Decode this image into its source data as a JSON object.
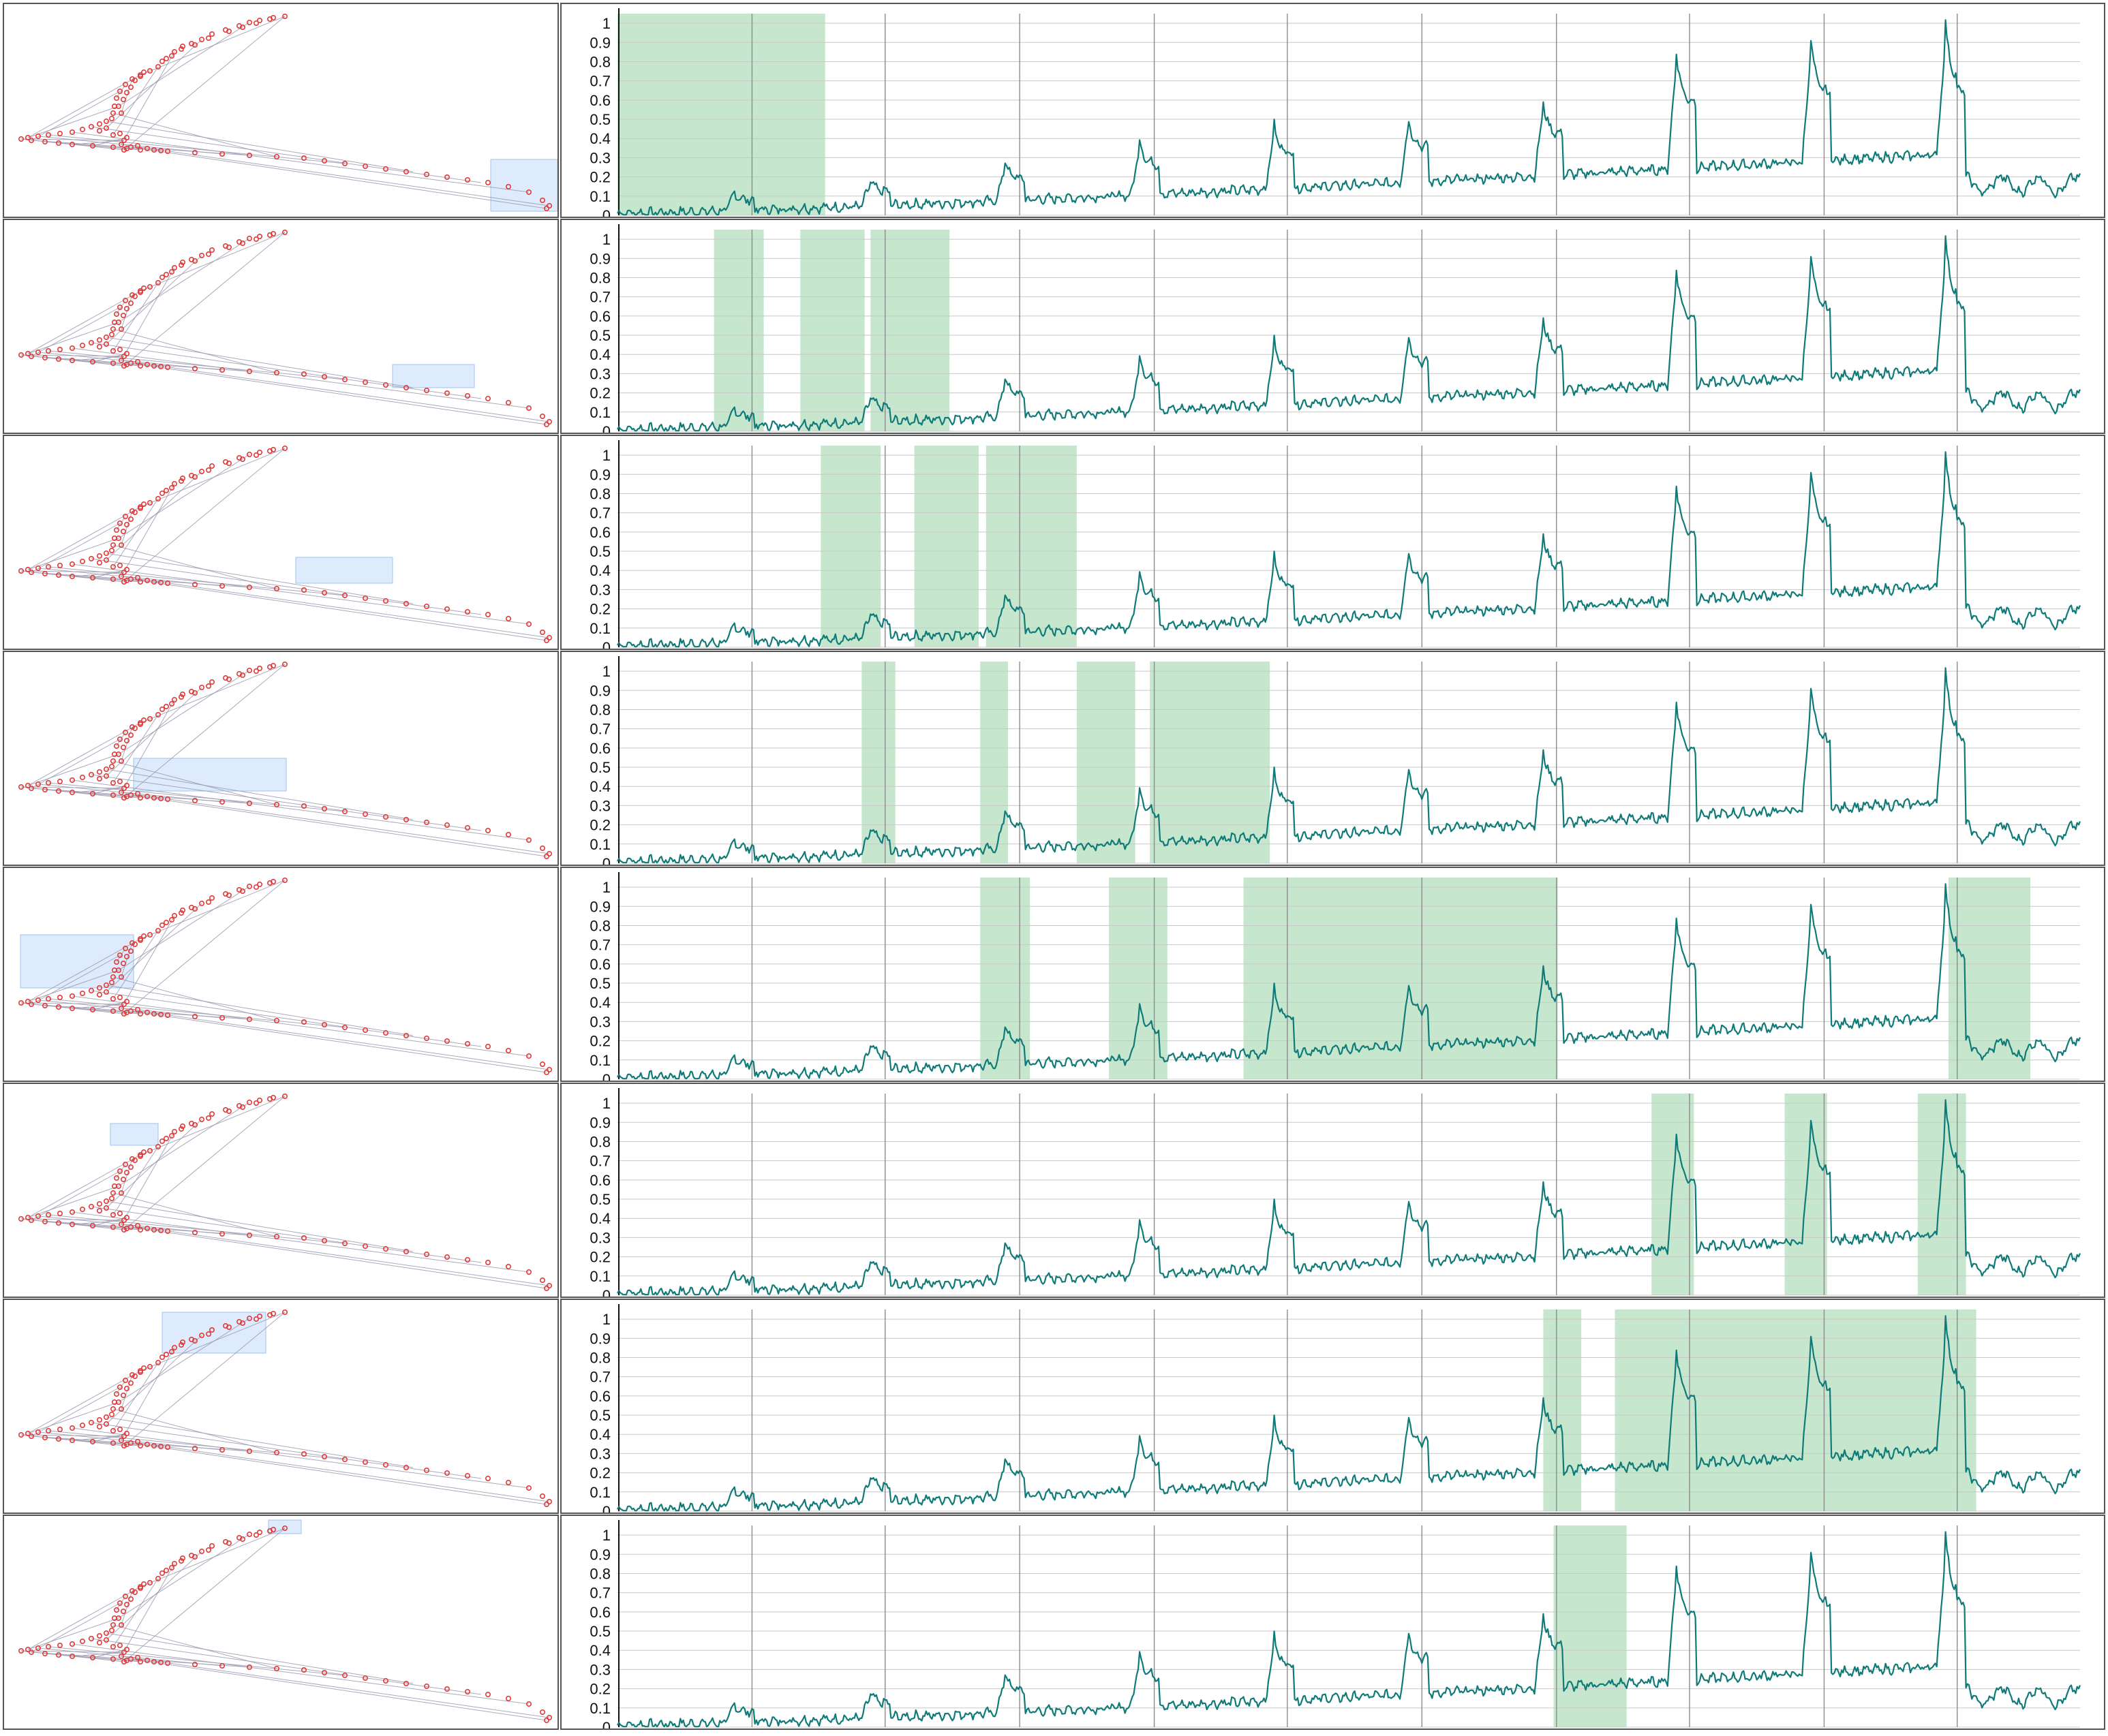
{
  "colors": {
    "line": "#0f7b78",
    "highlight": "#b3dfbd",
    "grid": "#c8c8c8",
    "cycle_line": "#8c8c8c",
    "axis": "#111111",
    "trajectory_node": "#e23a3a",
    "trajectory_edge": "#9a9ab0",
    "selection_box": "#cfe3fb"
  },
  "chart_data": {
    "type": "line",
    "panel_count": 8,
    "x_range": [
      0,
      1000
    ],
    "ylim": [
      0,
      1.05
    ],
    "y_ticks": [
      "0",
      "0.1",
      "0.2",
      "0.3",
      "0.4",
      "0.5",
      "0.6",
      "0.7",
      "0.8",
      "0.9",
      "1"
    ],
    "grid": true,
    "series_shape": {
      "baseline_start": 0.01,
      "baseline_end": 0.32,
      "cycle_boundaries": [
        92,
        183,
        275,
        367,
        458,
        550,
        642,
        733,
        825,
        916
      ],
      "peaks": [
        {
          "x": 80,
          "value": 0.12
        },
        {
          "x": 173,
          "value": 0.18
        },
        {
          "x": 265,
          "value": 0.28
        },
        {
          "x": 357,
          "value": 0.39
        },
        {
          "x": 449,
          "value": 0.47
        },
        {
          "x": 541,
          "value": 0.5
        },
        {
          "x": 633,
          "value": 0.59
        },
        {
          "x": 724,
          "value": 0.86
        },
        {
          "x": 816,
          "value": 0.92
        },
        {
          "x": 908,
          "value": 1.0
        }
      ],
      "tail_dip": 0.16
    },
    "highlights": [
      [
        [
          0,
          142
        ]
      ],
      [
        [
          66,
          100
        ],
        [
          125,
          169
        ],
        [
          173,
          227
        ]
      ],
      [
        [
          139,
          180
        ],
        [
          203,
          247
        ],
        [
          252,
          314
        ]
      ],
      [
        [
          167,
          190
        ],
        [
          248,
          267
        ],
        [
          314,
          354
        ],
        [
          364,
          446
        ]
      ],
      [
        [
          248,
          282
        ],
        [
          336,
          376
        ],
        [
          428,
          643
        ],
        [
          910,
          966
        ]
      ],
      [
        [
          707,
          736
        ],
        [
          798,
          827
        ],
        [
          889,
          922
        ]
      ],
      [
        [
          633,
          659
        ],
        [
          682,
          929
        ]
      ],
      [
        [
          640,
          690
        ]
      ]
    ]
  },
  "trajectory_panels": {
    "selection_boxes": [
      {
        "region": "far right tail"
      },
      {
        "region": "lower branch right-middle"
      },
      {
        "region": "lower branch middle"
      },
      {
        "region": "lower branch left-middle"
      },
      {
        "region": "left junction"
      },
      {
        "region": "upper branch lower"
      },
      {
        "region": "upper branch middle"
      },
      {
        "region": "upper branch tip"
      }
    ]
  }
}
